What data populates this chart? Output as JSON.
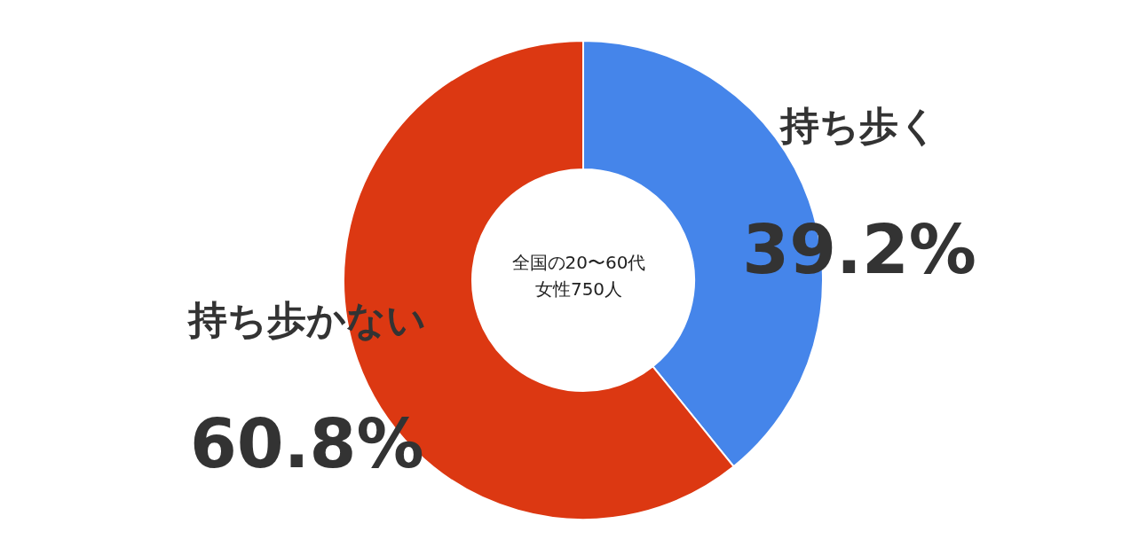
{
  "chart_data": {
    "type": "donut",
    "categories": [
      "持ち歩く",
      "持ち歩かない"
    ],
    "values": [
      39.2,
      60.8
    ],
    "colors": [
      "#4585ea",
      "#dc3812"
    ],
    "value_labels": [
      "39.2%",
      "60.8%"
    ],
    "annotations": [
      "全国の20〜60代",
      "女性750人"
    ],
    "legend": false
  }
}
